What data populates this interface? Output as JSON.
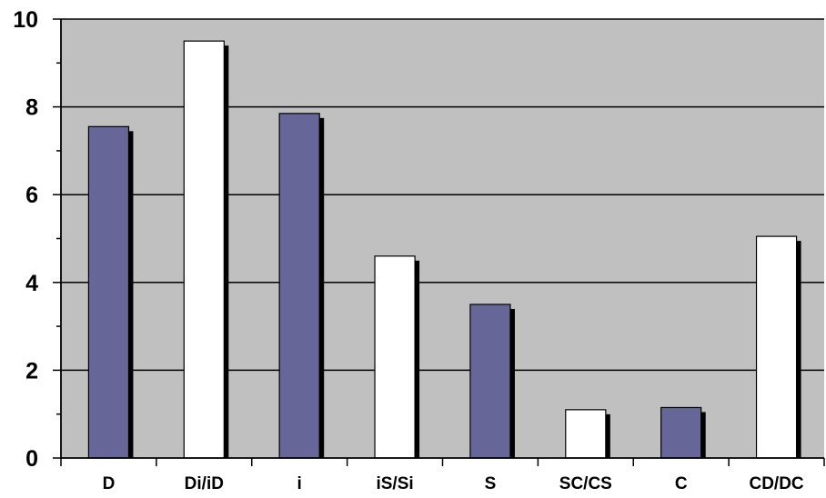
{
  "chart_data": {
    "type": "bar",
    "categories": [
      "D",
      "Di/iD",
      "i",
      "iS/Si",
      "S",
      "SC/CS",
      "C",
      "CD/DC"
    ],
    "values": [
      7.55,
      9.5,
      7.85,
      4.6,
      3.5,
      1.1,
      1.15,
      5.05
    ],
    "ylim": [
      0,
      10
    ],
    "yticks": [
      0,
      2,
      4,
      6,
      8,
      10
    ],
    "grid": true,
    "legend": "none",
    "colors": {
      "plot_background": "#c0c0c0",
      "bar_primary": "#666699",
      "bar_secondary": "#ffffff",
      "bar_shadow": "#000000",
      "bar_outline": "#000000",
      "gridline": "#000000"
    },
    "bar_fill_pattern": [
      "bar_primary",
      "bar_secondary",
      "bar_primary",
      "bar_secondary",
      "bar_primary",
      "bar_secondary",
      "bar_primary",
      "bar_secondary"
    ]
  }
}
